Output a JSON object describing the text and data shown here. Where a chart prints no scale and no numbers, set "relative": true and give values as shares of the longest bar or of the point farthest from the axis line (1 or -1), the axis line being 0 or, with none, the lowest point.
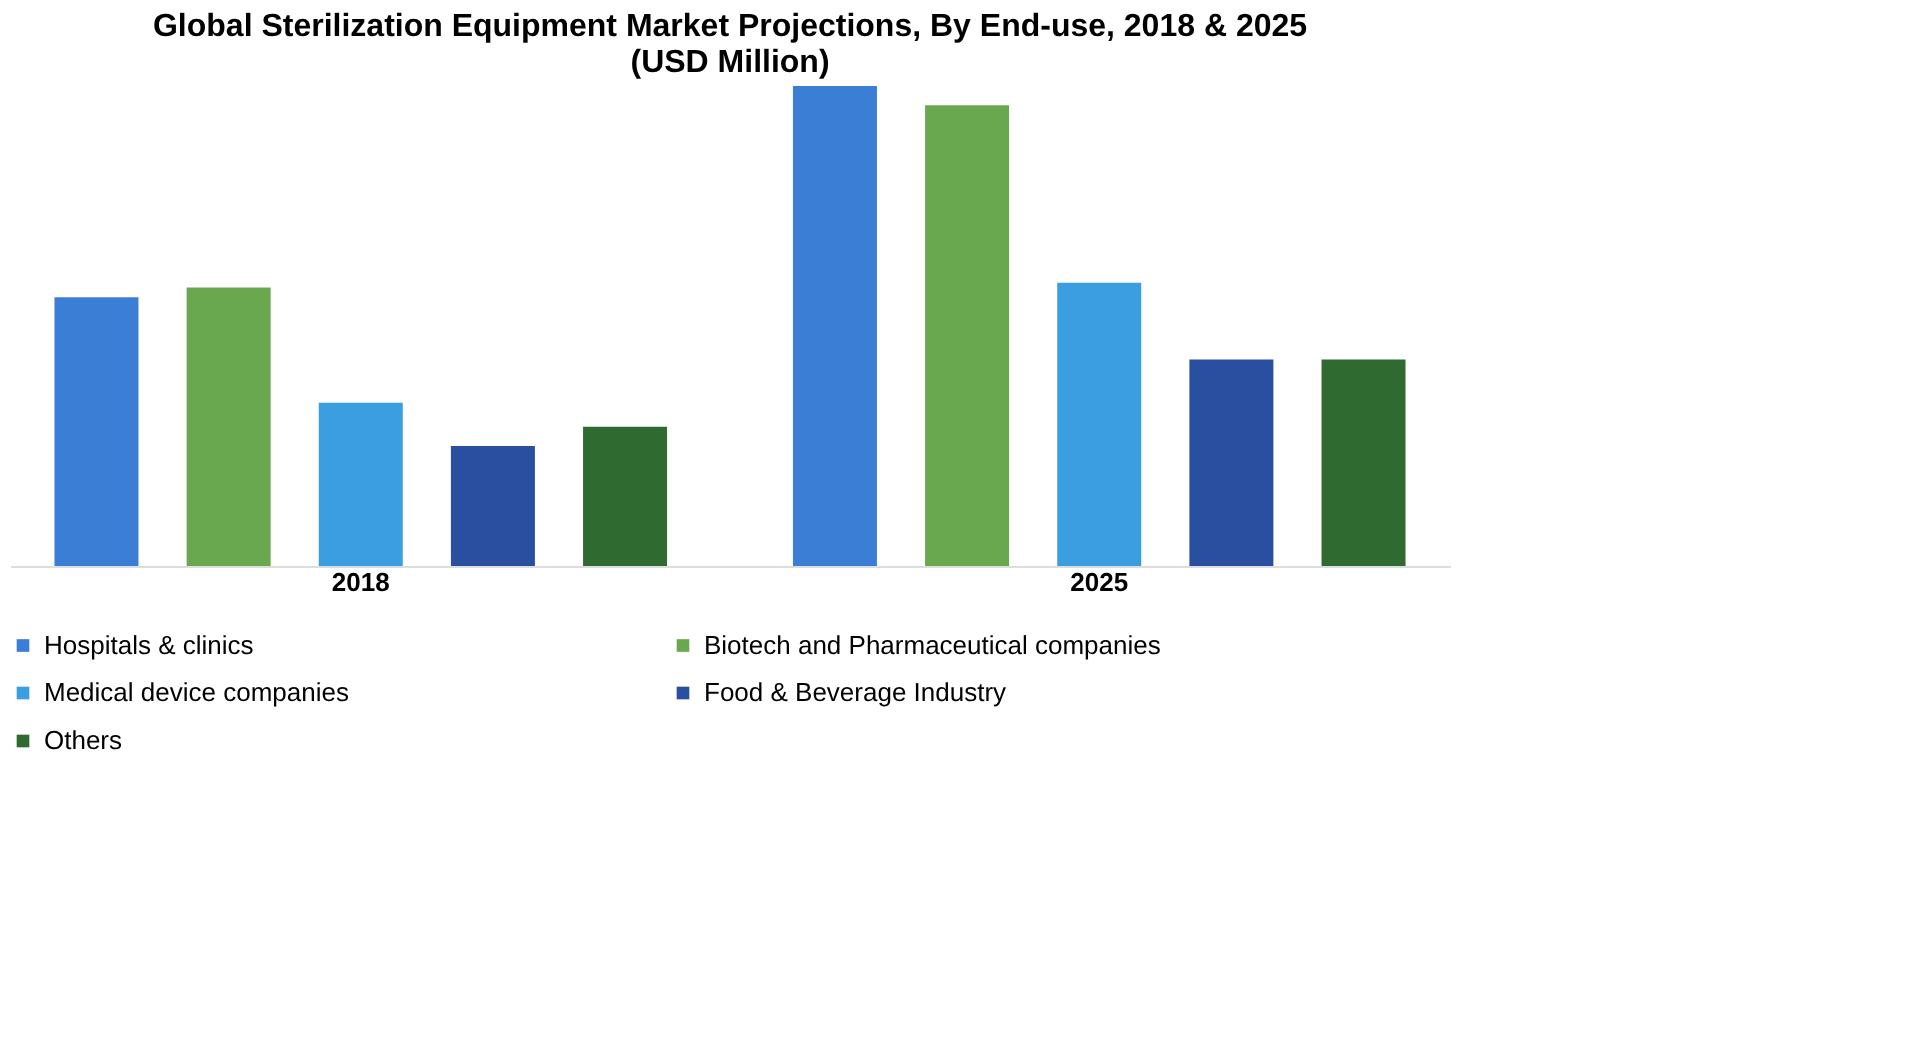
{
  "chart_data": {
    "type": "bar",
    "title": "Global Sterilization Equipment Market Projections, By End-use, 2018 & 2025\n(USD Million)",
    "categories": [
      "2018",
      "2025"
    ],
    "relative": true,
    "legend": "bottom",
    "grid": false,
    "series": [
      {
        "name": "Hospitals & clinics",
        "color": "#3a7fd5",
        "values": [
          0.56,
          1
        ]
      },
      {
        "name": "Biotech and Pharmaceutical companies",
        "color": "#6aa84f",
        "values": [
          0.58,
          0.96
        ]
      },
      {
        "name": "Medical device companies",
        "color": "#3a9ee0",
        "values": [
          0.34,
          0.59
        ]
      },
      {
        "name": "Food & Beverage Industry",
        "color": "#2a4fa0",
        "values": [
          0.25,
          0.43
        ]
      },
      {
        "name": "Others",
        "color": "#2f6b30",
        "values": [
          0.29,
          0.43
        ]
      }
    ]
  }
}
